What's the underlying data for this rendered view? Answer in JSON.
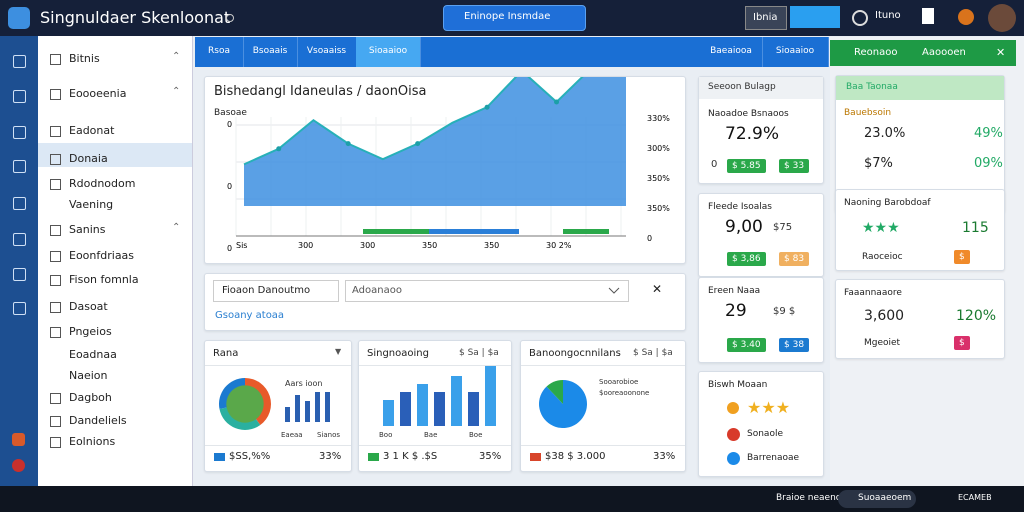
{
  "topbar": {
    "title": "Singnuldaer Skenloonat",
    "search": "Eninope Insmdae",
    "buttons": [
      "Ibnia",
      "Ituno"
    ]
  },
  "sidebar": {
    "items": [
      "Bitnis",
      "Eoooeenia",
      "Eadonat",
      "Donaia",
      "Rdodnodom",
      "Vaening",
      "Sanins",
      "Eoonfdriaas",
      "Fison fomnla",
      "Dasoat",
      "Pngeios",
      "Eoadnaa",
      "Naeion",
      "Dagboh",
      "Dandeliels",
      "Eolnions"
    ]
  },
  "tabs": [
    "Rsoa",
    "Bsoaais",
    "Vsoaaiss",
    "Sioaaioo",
    "Baeaiooa",
    "Sioaaioo"
  ],
  "main_chart": {
    "title": "Bishedangl Idaneulas / daonOisa",
    "subtitle": "Basoae",
    "y_left": [
      "0",
      "0",
      "0"
    ],
    "y_right": [
      "330%",
      "300%",
      "350%",
      "350%",
      "0"
    ],
    "x_labels": [
      "Sis",
      "300",
      "300",
      "350",
      "350",
      "30 2%"
    ],
    "values": [
      16,
      22,
      33,
      24,
      18,
      24,
      32,
      38,
      52,
      40,
      53,
      62
    ]
  },
  "filter": {
    "input": "Fioaon Danoutmo",
    "select": "Adoanaoo",
    "link": "Gsoany atoaa"
  },
  "cards": [
    {
      "title": "Rana",
      "legend": "Aars ioon",
      "labels": [
        "Eaeaa",
        "Sianos"
      ],
      "footer": "$SS,%%",
      "pct": "33%",
      "segments": [
        40,
        32,
        28
      ],
      "bars": [
        5,
        9,
        7,
        10,
        10
      ]
    },
    {
      "title": "Singnoaoing",
      "header": "$ Sa | $a",
      "labels": [
        "Boo",
        "Bae",
        "Boe"
      ],
      "footer": "3 1 K $ .$S",
      "pct": "35%",
      "bars": [
        13,
        17,
        21,
        17,
        25,
        17,
        30
      ]
    },
    {
      "title": "Banoongocnnilans",
      "header": "$ Sa | $a",
      "lines": [
        "Sooarobioe",
        "$ooreaoonone"
      ],
      "footer": "$38 $ 3.000",
      "pct": "33%",
      "segments": [
        88,
        12
      ]
    }
  ],
  "stats": [
    {
      "header": "Seeoon Bulagp",
      "title": "Naoadoe Bsnaoos",
      "big": "72.9%",
      "small": "0",
      "chips": [
        "$ 5.85",
        "$ 33"
      ]
    },
    {
      "title": "Fleede Isoalas",
      "big": "9,00",
      "small": "$75",
      "chips": [
        "$ 3,86",
        "$ 83"
      ]
    },
    {
      "title": "Ereen Naaa",
      "big": "29",
      "small": "$9 $",
      "chips": [
        "$ 3.40",
        "$ 38"
      ]
    },
    {
      "title": "Biswh Moaan",
      "lines": [
        "Sonaole",
        "Barrenaoae"
      ]
    }
  ],
  "right": {
    "header": [
      "Reonaoo",
      "Aaoooen"
    ],
    "card1": {
      "title": "Baa Taonaa",
      "label": "Bauebsoin",
      "rows": [
        [
          "23.0%",
          "49%"
        ],
        [
          "$7%",
          "09%"
        ]
      ]
    },
    "card2": {
      "title": "Naoning Barobdoaf",
      "big": "115",
      "label": "Raoceioc",
      "chip": "$"
    },
    "card3": {
      "title": "Faaannaaore",
      "big": "3,600",
      "pct": "120%",
      "label": "Mgeoiet",
      "chip": "$"
    }
  },
  "taskbar": {
    "items": [
      "Braioe neaeno",
      "Suoaaeoem",
      "ECAMEB"
    ]
  }
}
